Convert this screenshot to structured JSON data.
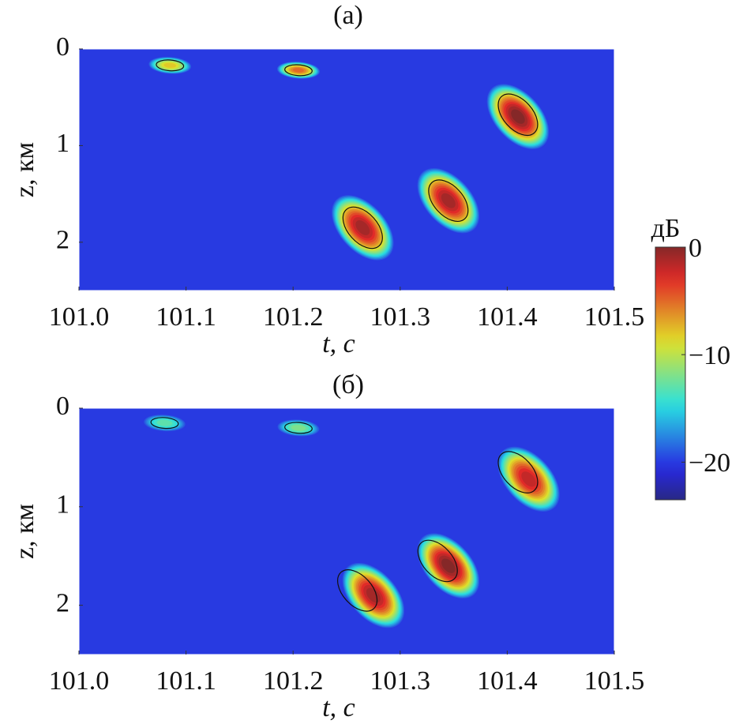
{
  "chart_data": [
    {
      "type": "heatmap",
      "title": "(a)",
      "xlabel": "t, с",
      "ylabel": "z, км",
      "xlim": [
        101.0,
        101.5
      ],
      "xticks": [
        {
          "value": 101.0,
          "label": "101.0"
        },
        101.1,
        101.2,
        101.3,
        101.4,
        101.5
      ],
      "ylim": [
        0,
        2.5
      ],
      "yticks": [
        0,
        1,
        2
      ],
      "y_inverted": true,
      "background_level": -20,
      "spots": [
        {
          "t": 101.085,
          "z": 0.17,
          "peak": -8,
          "contour_t": 101.085,
          "contour_z": 0.17
        },
        {
          "t": 101.205,
          "z": 0.22,
          "peak": -5,
          "contour_t": 101.205,
          "contour_z": 0.22
        },
        {
          "t": 101.41,
          "z": 0.7,
          "peak": 0,
          "contour_t": 101.41,
          "contour_z": 0.68
        },
        {
          "t": 101.345,
          "z": 1.57,
          "peak": -1,
          "contour_t": 101.345,
          "contour_z": 1.57
        },
        {
          "t": 101.265,
          "z": 1.85,
          "peak": -1,
          "contour_t": 101.265,
          "contour_z": 1.85
        }
      ]
    },
    {
      "type": "heatmap",
      "title": "(б)",
      "xlabel": "t, с",
      "ylabel": "z, км",
      "xlim": [
        101.0,
        101.5
      ],
      "xticks": [
        {
          "value": 101.0,
          "label": "101.0"
        },
        101.1,
        101.2,
        101.3,
        101.4,
        101.5
      ],
      "ylim": [
        0,
        2.5
      ],
      "yticks": [
        0,
        1,
        2
      ],
      "y_inverted": true,
      "background_level": -20,
      "spots": [
        {
          "t": 101.08,
          "z": 0.15,
          "peak": -13,
          "contour_t": 101.08,
          "contour_z": 0.15
        },
        {
          "t": 101.205,
          "z": 0.2,
          "peak": -12,
          "contour_t": 101.205,
          "contour_z": 0.2
        },
        {
          "t": 101.42,
          "z": 0.72,
          "peak": -2,
          "contour_t": 101.41,
          "contour_z": 0.65
        },
        {
          "t": 101.345,
          "z": 1.6,
          "peak": 0,
          "contour_t": 101.335,
          "contour_z": 1.55
        },
        {
          "t": 101.275,
          "z": 1.9,
          "peak": -1,
          "contour_t": 101.26,
          "contour_z": 1.85
        }
      ]
    }
  ],
  "colorbar": {
    "label": "дБ",
    "lim": [
      -23.5,
      0
    ],
    "colormap": "jet",
    "ticks": [
      0,
      {
        "value": -10,
        "label": "−10"
      },
      {
        "value": -20,
        "label": "−20"
      }
    ]
  }
}
